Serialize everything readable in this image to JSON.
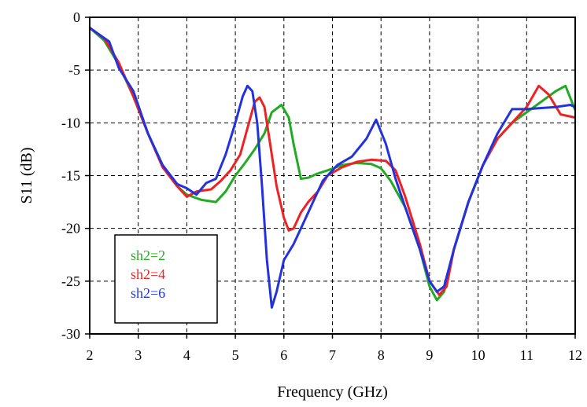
{
  "chart_data": {
    "type": "line",
    "title": "",
    "xlabel": "Frequency (GHz)",
    "ylabel": "S11 (dB)",
    "xlim": [
      2,
      12
    ],
    "ylim": [
      -30,
      0
    ],
    "x_ticks": [
      "2",
      "3",
      "4",
      "5",
      "6",
      "7",
      "8",
      "9",
      "10",
      "11",
      "12"
    ],
    "y_ticks": [
      "0",
      "-5",
      "-10",
      "-15",
      "-20",
      "-25",
      "-30"
    ],
    "grid": "dashed",
    "legend_position": "bottom-left",
    "series": [
      {
        "name": "sh2=2",
        "color": "#22aa22",
        "points": [
          [
            2,
            -1
          ],
          [
            2.3,
            -2.2
          ],
          [
            2.6,
            -4.5
          ],
          [
            2.9,
            -7.5
          ],
          [
            3.2,
            -11
          ],
          [
            3.5,
            -14
          ],
          [
            3.8,
            -16
          ],
          [
            4.0,
            -16.8
          ],
          [
            4.3,
            -17.3
          ],
          [
            4.6,
            -17.5
          ],
          [
            4.8,
            -16.5
          ],
          [
            5.0,
            -15
          ],
          [
            5.2,
            -13.8
          ],
          [
            5.4,
            -12.5
          ],
          [
            5.6,
            -11
          ],
          [
            5.75,
            -9
          ],
          [
            5.95,
            -8.3
          ],
          [
            6.1,
            -9.5
          ],
          [
            6.2,
            -12
          ],
          [
            6.35,
            -15.3
          ],
          [
            6.5,
            -15.2
          ],
          [
            6.7,
            -14.8
          ],
          [
            6.9,
            -14.5
          ],
          [
            7.2,
            -14
          ],
          [
            7.5,
            -13.8
          ],
          [
            7.8,
            -13.9
          ],
          [
            8.0,
            -14.3
          ],
          [
            8.2,
            -15.5
          ],
          [
            8.5,
            -18
          ],
          [
            8.8,
            -22
          ],
          [
            9.0,
            -25.5
          ],
          [
            9.15,
            -26.8
          ],
          [
            9.3,
            -26
          ],
          [
            9.5,
            -22
          ],
          [
            9.8,
            -17.5
          ],
          [
            10.1,
            -14
          ],
          [
            10.4,
            -11.5
          ],
          [
            10.7,
            -10
          ],
          [
            11.0,
            -9
          ],
          [
            11.3,
            -8
          ],
          [
            11.6,
            -7
          ],
          [
            11.8,
            -6.5
          ],
          [
            12.0,
            -8.8
          ]
        ]
      },
      {
        "name": "sh2=4",
        "color": "#ee2222",
        "points": [
          [
            2,
            -1
          ],
          [
            2.3,
            -2
          ],
          [
            2.6,
            -4.3
          ],
          [
            2.9,
            -7.5
          ],
          [
            3.2,
            -11
          ],
          [
            3.5,
            -14.2
          ],
          [
            3.8,
            -16
          ],
          [
            4.0,
            -17
          ],
          [
            4.2,
            -16.5
          ],
          [
            4.5,
            -16.3
          ],
          [
            4.7,
            -15.5
          ],
          [
            4.9,
            -14.5
          ],
          [
            5.1,
            -13
          ],
          [
            5.25,
            -10.5
          ],
          [
            5.4,
            -8
          ],
          [
            5.5,
            -7.6
          ],
          [
            5.6,
            -8.5
          ],
          [
            5.7,
            -11.5
          ],
          [
            5.85,
            -16
          ],
          [
            6.0,
            -19
          ],
          [
            6.1,
            -20.2
          ],
          [
            6.2,
            -20
          ],
          [
            6.35,
            -18.5
          ],
          [
            6.5,
            -17.5
          ],
          [
            6.7,
            -16.5
          ],
          [
            6.9,
            -15
          ],
          [
            7.2,
            -14.2
          ],
          [
            7.5,
            -13.7
          ],
          [
            7.8,
            -13.5
          ],
          [
            8.1,
            -13.6
          ],
          [
            8.3,
            -14.5
          ],
          [
            8.5,
            -17
          ],
          [
            8.8,
            -21.5
          ],
          [
            9.0,
            -25
          ],
          [
            9.2,
            -26.3
          ],
          [
            9.35,
            -25.5
          ],
          [
            9.5,
            -22
          ],
          [
            9.8,
            -17.5
          ],
          [
            10.1,
            -14
          ],
          [
            10.4,
            -11.5
          ],
          [
            10.7,
            -10
          ],
          [
            11.0,
            -8.5
          ],
          [
            11.25,
            -6.5
          ],
          [
            11.45,
            -7.3
          ],
          [
            11.7,
            -9.2
          ],
          [
            12.0,
            -9.5
          ]
        ]
      },
      {
        "name": "sh2=6",
        "color": "#2233dd",
        "points": [
          [
            2,
            -1
          ],
          [
            2.4,
            -2.3
          ],
          [
            2.6,
            -4.8
          ],
          [
            2.9,
            -7
          ],
          [
            3.2,
            -11
          ],
          [
            3.5,
            -14
          ],
          [
            3.8,
            -15.8
          ],
          [
            4.0,
            -16.2
          ],
          [
            4.2,
            -16.8
          ],
          [
            4.4,
            -15.7
          ],
          [
            4.6,
            -15.3
          ],
          [
            4.8,
            -13
          ],
          [
            5.0,
            -10
          ],
          [
            5.15,
            -7.5
          ],
          [
            5.25,
            -6.5
          ],
          [
            5.35,
            -7
          ],
          [
            5.45,
            -10
          ],
          [
            5.55,
            -16
          ],
          [
            5.65,
            -23
          ],
          [
            5.75,
            -27.5
          ],
          [
            5.85,
            -26
          ],
          [
            6.0,
            -23
          ],
          [
            6.2,
            -21.5
          ],
          [
            6.4,
            -19.5
          ],
          [
            6.6,
            -17.5
          ],
          [
            6.8,
            -15.5
          ],
          [
            7.1,
            -14
          ],
          [
            7.4,
            -13.2
          ],
          [
            7.7,
            -11.5
          ],
          [
            7.9,
            -9.7
          ],
          [
            8.1,
            -12
          ],
          [
            8.3,
            -15.3
          ],
          [
            8.5,
            -18
          ],
          [
            8.8,
            -22
          ],
          [
            9.0,
            -25
          ],
          [
            9.15,
            -26
          ],
          [
            9.3,
            -25.5
          ],
          [
            9.5,
            -22
          ],
          [
            9.8,
            -17.5
          ],
          [
            10.1,
            -14
          ],
          [
            10.4,
            -11
          ],
          [
            10.7,
            -8.7
          ],
          [
            11.0,
            -8.7
          ],
          [
            11.3,
            -8.6
          ],
          [
            11.6,
            -8.5
          ],
          [
            11.9,
            -8.3
          ],
          [
            12.0,
            -8.5
          ]
        ]
      }
    ]
  }
}
